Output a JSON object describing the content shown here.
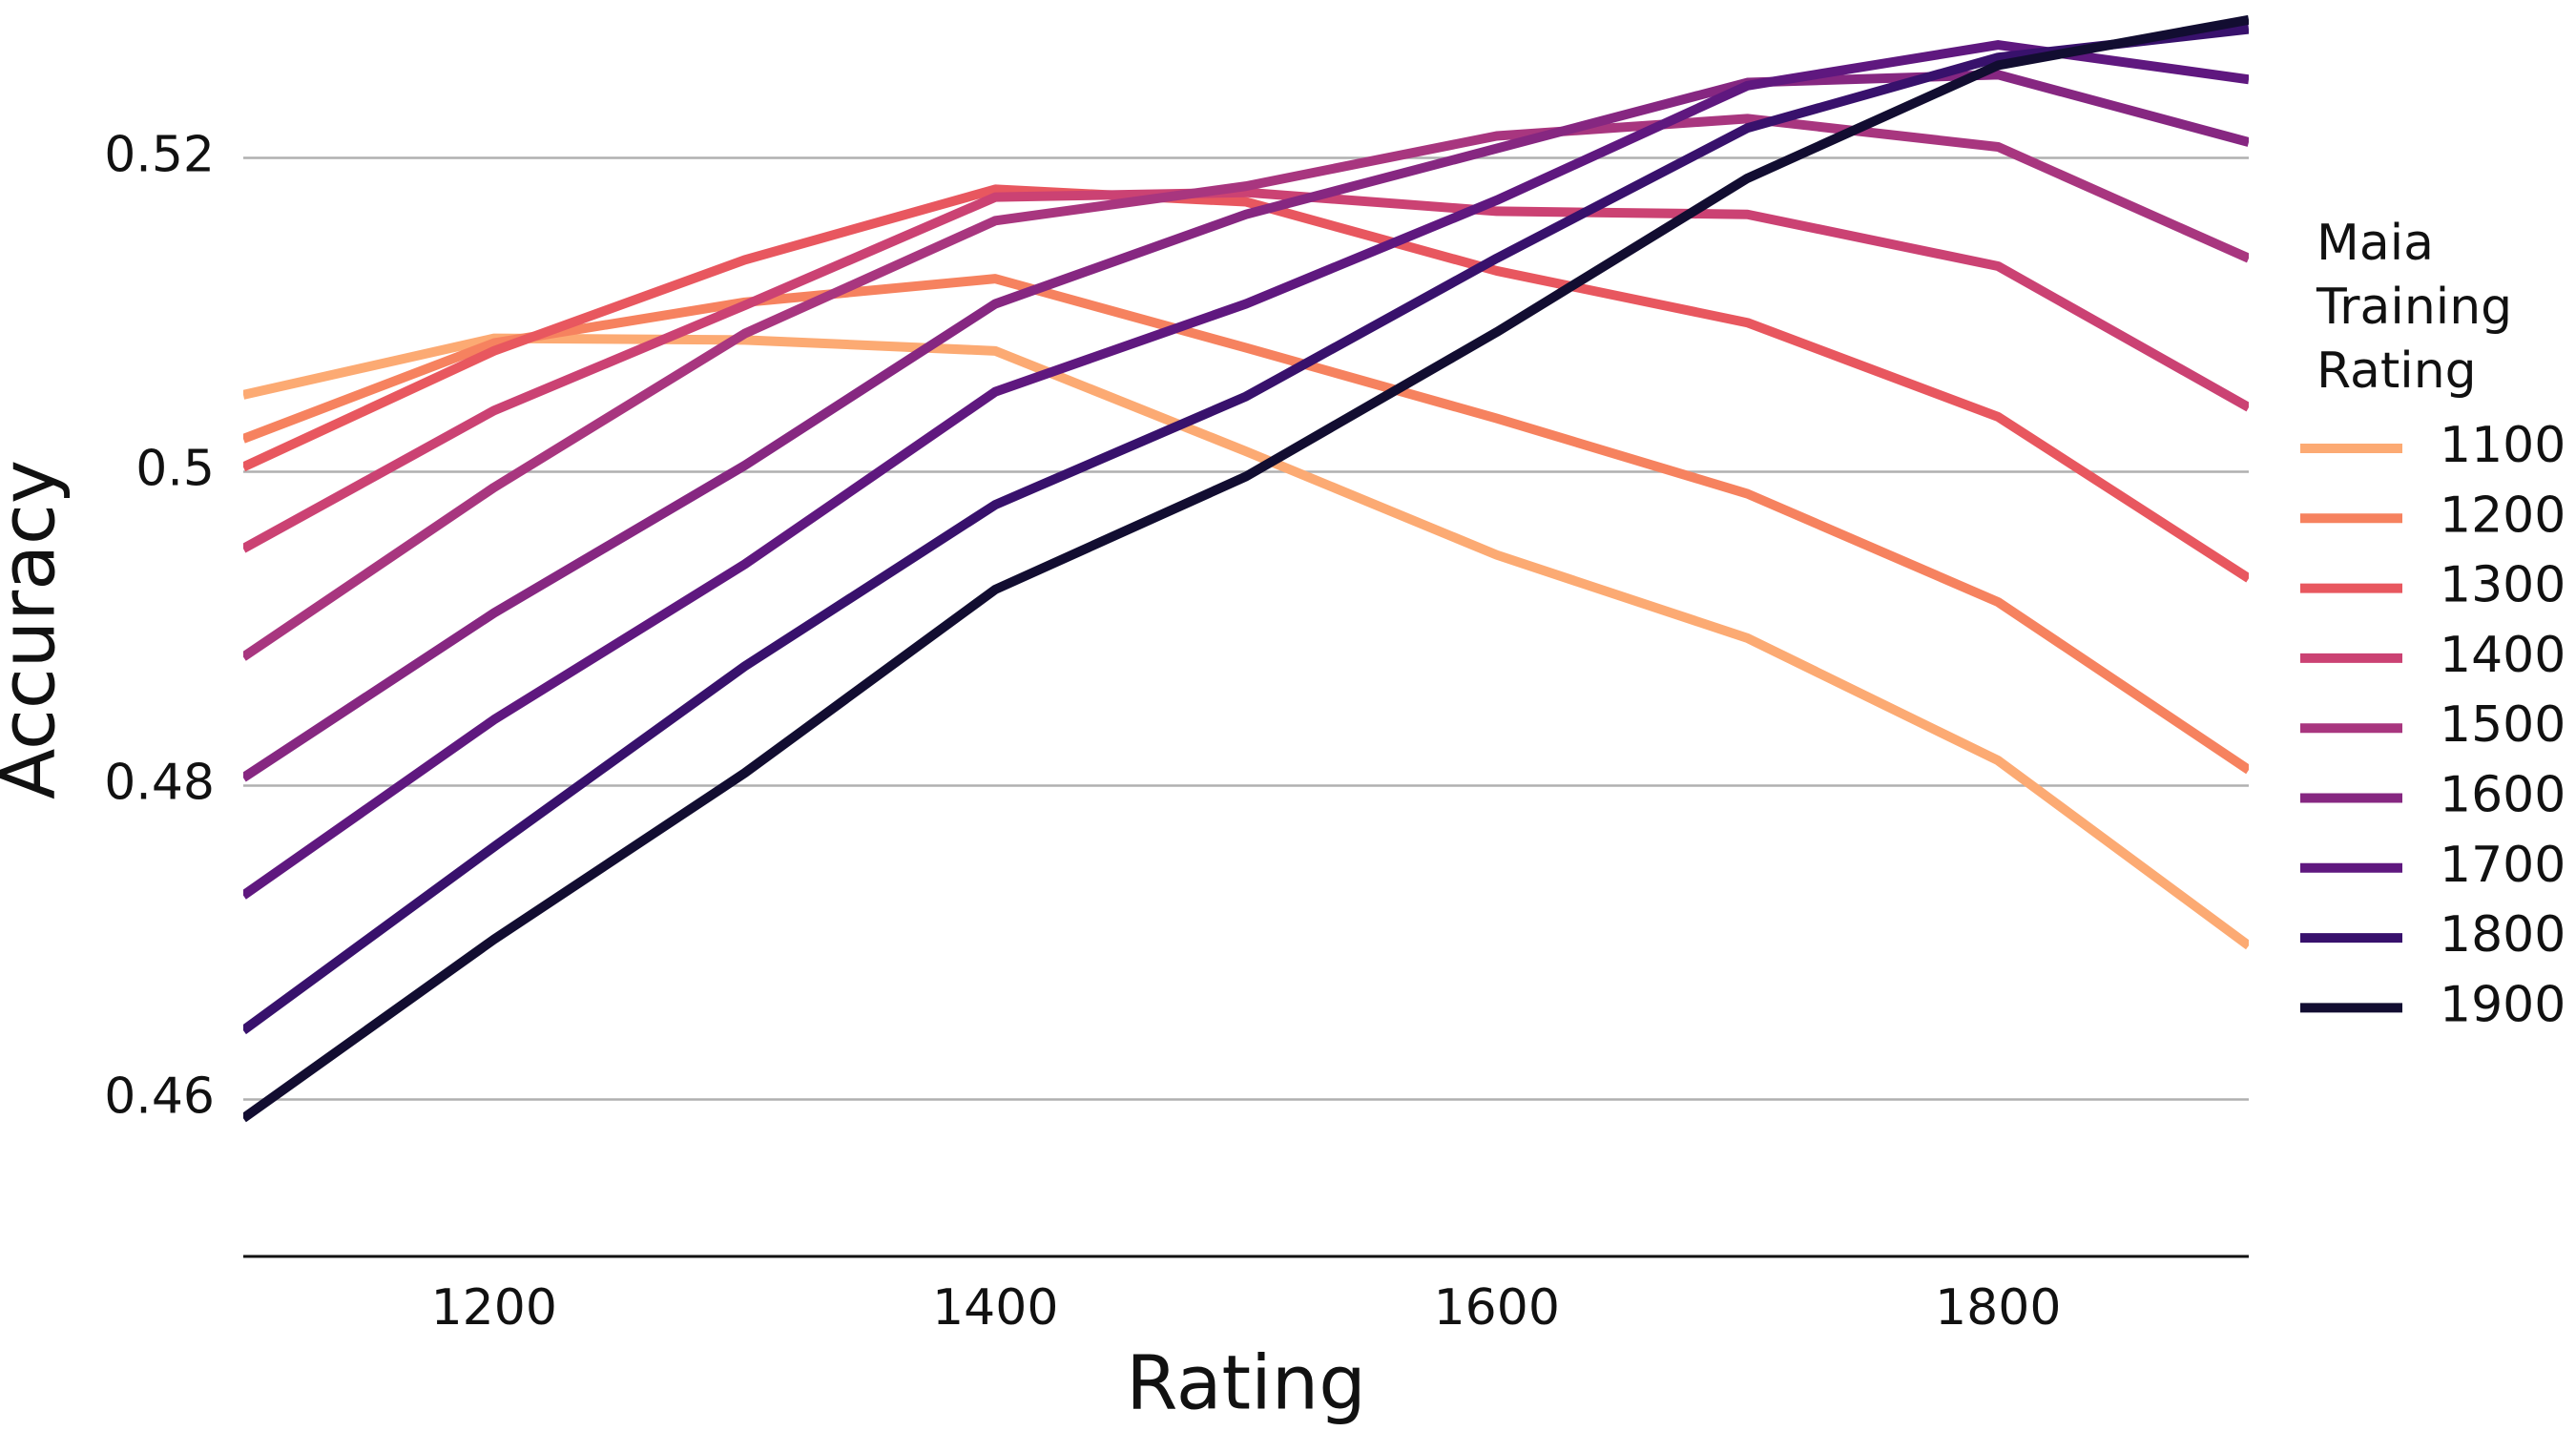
{
  "chart_data": {
    "type": "line",
    "x_label": "Rating",
    "y_label": "Accuracy",
    "legend_title": [
      "Maia",
      "Training",
      "Rating"
    ],
    "legend_position": "right",
    "grid": true,
    "xlim": [
      1100,
      1900
    ],
    "xticks": [
      1200,
      1400,
      1600,
      1800
    ],
    "ylim": [
      0.45,
      0.53
    ],
    "yticks": [
      0.46,
      0.48,
      0.5,
      0.52
    ],
    "x": [
      1100,
      1200,
      1300,
      1400,
      1500,
      1600,
      1700,
      1800,
      1900
    ],
    "series": [
      {
        "name": "1100",
        "color": "#fcaa73",
        "values": [
          0.5049,
          0.5085,
          0.5084,
          0.5077,
          0.5013,
          0.4947,
          0.4894,
          0.4816,
          0.4698
        ]
      },
      {
        "name": "1200",
        "color": "#f6825f",
        "values": [
          0.5021,
          0.5082,
          0.5108,
          0.5123,
          0.5079,
          0.5034,
          0.4986,
          0.4917,
          0.481
        ]
      },
      {
        "name": "1300",
        "color": "#e8575f",
        "values": [
          0.5003,
          0.5077,
          0.5135,
          0.518,
          0.5172,
          0.5128,
          0.5095,
          0.5035,
          0.4932
        ]
      },
      {
        "name": "1400",
        "color": "#cb4273",
        "values": [
          0.4951,
          0.5039,
          0.5106,
          0.5175,
          0.5178,
          0.5166,
          0.5164,
          0.5131,
          0.5041
        ]
      },
      {
        "name": "1500",
        "color": "#a8367f",
        "values": [
          0.4882,
          0.499,
          0.5088,
          0.516,
          0.5182,
          0.5214,
          0.5225,
          0.5207,
          0.5136
        ]
      },
      {
        "name": "1600",
        "color": "#862781",
        "values": [
          0.4805,
          0.491,
          0.5004,
          0.5107,
          0.5164,
          0.5206,
          0.5248,
          0.5253,
          0.521
        ]
      },
      {
        "name": "1700",
        "color": "#5f187f",
        "values": [
          0.473,
          0.4842,
          0.4941,
          0.5051,
          0.5107,
          0.5173,
          0.5246,
          0.5272,
          0.525
        ]
      },
      {
        "name": "1800",
        "color": "#38116c",
        "values": [
          0.4644,
          0.4761,
          0.4876,
          0.4979,
          0.5048,
          0.5136,
          0.5219,
          0.5264,
          0.5282
        ]
      },
      {
        "name": "1900",
        "color": "#120d31",
        "values": [
          0.4588,
          0.4702,
          0.4808,
          0.4925,
          0.4997,
          0.5089,
          0.5187,
          0.5259,
          0.5288
        ]
      }
    ]
  }
}
